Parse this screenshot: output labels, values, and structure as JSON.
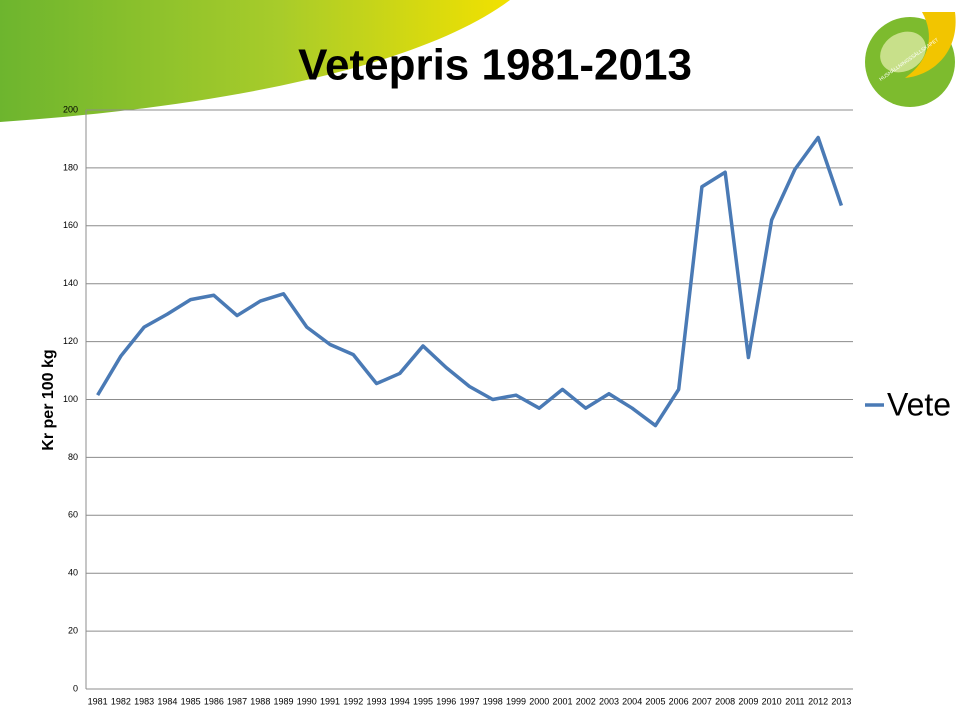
{
  "chart_data": {
    "type": "line",
    "title": "Vetepris 1981-2013",
    "y_label": "Kr per 100 kg",
    "categories": [
      "1981",
      "1982",
      "1983",
      "1984",
      "1985",
      "1986",
      "1987",
      "1988",
      "1989",
      "1990",
      "1991",
      "1992",
      "1993",
      "1994",
      "1995",
      "1996",
      "1997",
      "1998",
      "1999",
      "2000",
      "2001",
      "2002",
      "2003",
      "2004",
      "2005",
      "2006",
      "2007",
      "2008",
      "2009",
      "2010",
      "2011",
      "2012",
      "2013"
    ],
    "series": [
      {
        "name": "Vete",
        "color": "#4a7ab5",
        "values": [
          101.5,
          115,
          125,
          129.5,
          134.5,
          136,
          129,
          134,
          136.5,
          125,
          119,
          115.5,
          105.5,
          109,
          118.5,
          111,
          104.5,
          100,
          101.5,
          97,
          103.5,
          97,
          102,
          97,
          91,
          103.5,
          173.5,
          178.5,
          114.5,
          162,
          179.5,
          190.5,
          167
        ]
      }
    ],
    "ylim": [
      0,
      200
    ],
    "yticks": [
      0,
      20,
      40,
      60,
      80,
      100,
      120,
      140,
      160,
      180,
      200
    ],
    "grid": true
  },
  "logo_text": "HUSHÅLLNINGSSÄLLSKAPET"
}
